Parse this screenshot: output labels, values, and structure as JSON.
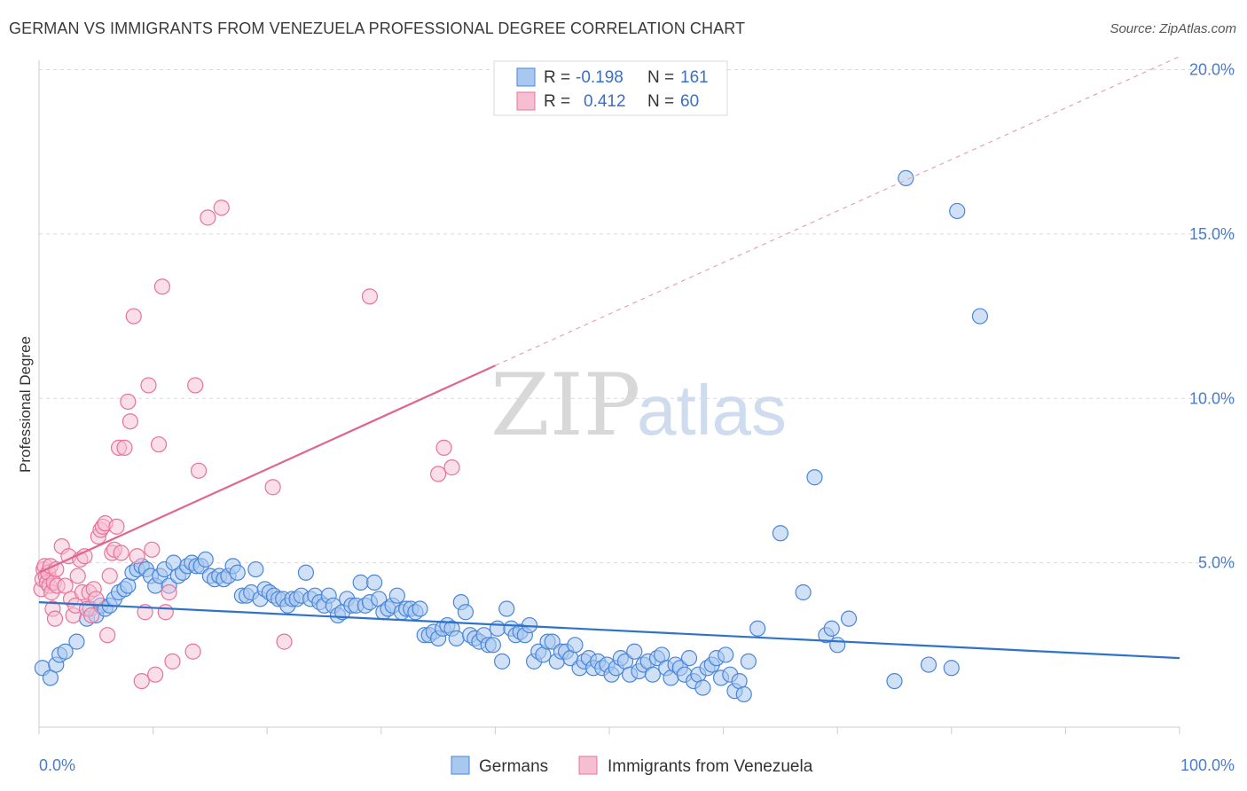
{
  "title": "GERMAN VS IMMIGRANTS FROM VENEZUELA PROFESSIONAL DEGREE CORRELATION CHART",
  "source": "Source: ZipAtlas.com",
  "watermark": {
    "zip": "ZIP",
    "atlas": "atlas"
  },
  "colors": {
    "blue": "#4a86d8",
    "blue_fill": "#a9c8f0",
    "pink": "#e87399",
    "pink_fill": "#f6bfd1",
    "tick_text": "#4a7cc9"
  },
  "legend": {
    "rows": [
      {
        "r_label": "R = ",
        "r_value": "-0.198",
        "n_label": "N = ",
        "n_value": "161"
      },
      {
        "r_label": "R = ",
        "r_value": "0.412",
        "n_label": "N = ",
        "n_value": "60"
      }
    ]
  },
  "bottom_legend": {
    "germans": "Germans",
    "venezuela": "Immigrants from Venezuela"
  },
  "chart_data": {
    "type": "scatter",
    "title": "GERMAN VS IMMIGRANTS FROM VENEZUELA PROFESSIONAL DEGREE CORRELATION CHART",
    "xlabel": "",
    "ylabel": "Professional Degree",
    "xlim": [
      0,
      100
    ],
    "ylim": [
      0,
      20.5
    ],
    "x_tick_labels": [
      "0.0%",
      "100.0%"
    ],
    "y_ticks": [
      5,
      10,
      15,
      20
    ],
    "y_tick_labels": [
      "5.0%",
      "10.0%",
      "15.0%",
      "20.0%"
    ],
    "grid": "horizontal dashed",
    "legend_position": "top-center",
    "series": [
      {
        "name": "Germans",
        "R": -0.198,
        "N": 161,
        "trend": {
          "x": [
            0,
            100
          ],
          "y": [
            3.8,
            2.1
          ],
          "dashed_extension": false
        },
        "points": [
          [
            0.3,
            1.8
          ],
          [
            1.0,
            1.5
          ],
          [
            1.5,
            1.9
          ],
          [
            1.8,
            2.2
          ],
          [
            2.3,
            2.3
          ],
          [
            3.3,
            2.6
          ],
          [
            4.2,
            3.3
          ],
          [
            4.5,
            3.6
          ],
          [
            5.0,
            3.4
          ],
          [
            5.4,
            3.7
          ],
          [
            5.8,
            3.6
          ],
          [
            6.2,
            3.7
          ],
          [
            6.6,
            3.9
          ],
          [
            7.0,
            4.1
          ],
          [
            7.5,
            4.2
          ],
          [
            7.8,
            4.3
          ],
          [
            8.2,
            4.7
          ],
          [
            8.6,
            4.8
          ],
          [
            9.0,
            4.9
          ],
          [
            9.4,
            4.8
          ],
          [
            9.8,
            4.6
          ],
          [
            10.2,
            4.3
          ],
          [
            10.6,
            4.6
          ],
          [
            11.0,
            4.8
          ],
          [
            11.4,
            4.3
          ],
          [
            11.8,
            5.0
          ],
          [
            12.2,
            4.6
          ],
          [
            12.6,
            4.7
          ],
          [
            13.0,
            4.9
          ],
          [
            13.4,
            5.0
          ],
          [
            13.8,
            4.9
          ],
          [
            14.2,
            4.9
          ],
          [
            14.6,
            5.1
          ],
          [
            15.0,
            4.6
          ],
          [
            15.4,
            4.5
          ],
          [
            15.8,
            4.6
          ],
          [
            16.2,
            4.5
          ],
          [
            16.6,
            4.6
          ],
          [
            17.0,
            4.9
          ],
          [
            17.4,
            4.7
          ],
          [
            17.8,
            4.0
          ],
          [
            18.2,
            4.0
          ],
          [
            18.6,
            4.1
          ],
          [
            19.0,
            4.8
          ],
          [
            19.4,
            3.9
          ],
          [
            19.8,
            4.2
          ],
          [
            20.2,
            4.1
          ],
          [
            20.6,
            4.0
          ],
          [
            21.0,
            3.9
          ],
          [
            21.4,
            3.9
          ],
          [
            21.8,
            3.7
          ],
          [
            22.2,
            3.9
          ],
          [
            22.6,
            3.9
          ],
          [
            23.0,
            4.0
          ],
          [
            23.4,
            4.7
          ],
          [
            23.8,
            3.9
          ],
          [
            24.2,
            4.0
          ],
          [
            24.6,
            3.8
          ],
          [
            25.0,
            3.7
          ],
          [
            25.4,
            4.0
          ],
          [
            25.8,
            3.7
          ],
          [
            26.2,
            3.4
          ],
          [
            26.6,
            3.5
          ],
          [
            27.0,
            3.9
          ],
          [
            27.4,
            3.7
          ],
          [
            27.8,
            3.7
          ],
          [
            28.2,
            4.4
          ],
          [
            28.6,
            3.7
          ],
          [
            29.0,
            3.8
          ],
          [
            29.4,
            4.4
          ],
          [
            29.8,
            3.9
          ],
          [
            30.2,
            3.5
          ],
          [
            30.6,
            3.6
          ],
          [
            31.0,
            3.7
          ],
          [
            31.4,
            4.0
          ],
          [
            31.8,
            3.5
          ],
          [
            32.2,
            3.6
          ],
          [
            32.6,
            3.6
          ],
          [
            33.0,
            3.5
          ],
          [
            33.4,
            3.6
          ],
          [
            33.8,
            2.8
          ],
          [
            34.2,
            2.8
          ],
          [
            34.6,
            2.9
          ],
          [
            35.0,
            2.7
          ],
          [
            35.4,
            3.0
          ],
          [
            35.8,
            3.1
          ],
          [
            36.2,
            3.0
          ],
          [
            36.6,
            2.7
          ],
          [
            37.0,
            3.8
          ],
          [
            37.4,
            3.5
          ],
          [
            37.8,
            2.8
          ],
          [
            38.2,
            2.7
          ],
          [
            38.6,
            2.6
          ],
          [
            39.0,
            2.8
          ],
          [
            39.4,
            2.5
          ],
          [
            39.8,
            2.5
          ],
          [
            40.2,
            3.0
          ],
          [
            40.6,
            2.0
          ],
          [
            41.0,
            3.6
          ],
          [
            41.4,
            3.0
          ],
          [
            41.8,
            2.8
          ],
          [
            42.2,
            2.9
          ],
          [
            42.6,
            2.8
          ],
          [
            43.0,
            3.1
          ],
          [
            43.4,
            2.0
          ],
          [
            43.8,
            2.3
          ],
          [
            44.2,
            2.2
          ],
          [
            44.6,
            2.6
          ],
          [
            45.0,
            2.6
          ],
          [
            45.4,
            2.0
          ],
          [
            45.8,
            2.3
          ],
          [
            46.2,
            2.3
          ],
          [
            46.6,
            2.1
          ],
          [
            47.0,
            2.5
          ],
          [
            47.4,
            1.8
          ],
          [
            47.8,
            2.0
          ],
          [
            48.2,
            2.1
          ],
          [
            48.6,
            1.8
          ],
          [
            49.0,
            2.0
          ],
          [
            49.4,
            1.8
          ],
          [
            49.8,
            1.9
          ],
          [
            50.2,
            1.6
          ],
          [
            50.6,
            1.8
          ],
          [
            51.0,
            2.1
          ],
          [
            51.4,
            2.0
          ],
          [
            51.8,
            1.6
          ],
          [
            52.2,
            2.3
          ],
          [
            52.6,
            1.7
          ],
          [
            53.0,
            1.9
          ],
          [
            53.4,
            2.0
          ],
          [
            53.8,
            1.6
          ],
          [
            54.2,
            2.1
          ],
          [
            54.6,
            2.2
          ],
          [
            55.0,
            1.8
          ],
          [
            55.4,
            1.5
          ],
          [
            55.8,
            1.9
          ],
          [
            56.2,
            1.8
          ],
          [
            56.6,
            1.6
          ],
          [
            57.0,
            2.1
          ],
          [
            57.4,
            1.4
          ],
          [
            57.8,
            1.6
          ],
          [
            58.2,
            1.2
          ],
          [
            58.6,
            1.8
          ],
          [
            59.0,
            1.9
          ],
          [
            59.4,
            2.1
          ],
          [
            59.8,
            1.5
          ],
          [
            60.2,
            2.2
          ],
          [
            60.6,
            1.6
          ],
          [
            61.0,
            1.1
          ],
          [
            61.4,
            1.4
          ],
          [
            61.8,
            1.0
          ],
          [
            62.2,
            2.0
          ],
          [
            63.0,
            3.0
          ],
          [
            65.0,
            5.9
          ],
          [
            67.0,
            4.1
          ],
          [
            68.0,
            7.6
          ],
          [
            69.0,
            2.8
          ],
          [
            69.5,
            3.0
          ],
          [
            70.0,
            2.5
          ],
          [
            71.0,
            3.3
          ],
          [
            76.0,
            16.7
          ],
          [
            80.5,
            15.7
          ],
          [
            82.5,
            12.5
          ],
          [
            75.0,
            1.4
          ],
          [
            78.0,
            1.9
          ],
          [
            80.0,
            1.8
          ]
        ]
      },
      {
        "name": "Immigrants from Venezuela",
        "R": 0.412,
        "N": 60,
        "trend": {
          "x": [
            0,
            40
          ],
          "y": [
            4.7,
            11.0
          ],
          "dashed_extension_to": [
            100,
            20.4
          ]
        },
        "points": [
          [
            0.2,
            4.2
          ],
          [
            0.3,
            4.5
          ],
          [
            0.4,
            4.8
          ],
          [
            0.5,
            4.9
          ],
          [
            0.6,
            4.6
          ],
          [
            0.7,
            4.4
          ],
          [
            0.8,
            4.7
          ],
          [
            0.9,
            4.3
          ],
          [
            1.0,
            4.9
          ],
          [
            1.1,
            4.1
          ],
          [
            1.2,
            3.6
          ],
          [
            1.3,
            4.4
          ],
          [
            1.4,
            3.3
          ],
          [
            1.5,
            4.8
          ],
          [
            1.6,
            4.3
          ],
          [
            2.0,
            5.5
          ],
          [
            2.3,
            4.3
          ],
          [
            2.6,
            5.2
          ],
          [
            2.8,
            3.9
          ],
          [
            3.0,
            3.4
          ],
          [
            3.2,
            3.7
          ],
          [
            3.4,
            4.6
          ],
          [
            3.6,
            5.1
          ],
          [
            3.8,
            4.1
          ],
          [
            4.0,
            5.2
          ],
          [
            4.2,
            3.6
          ],
          [
            4.4,
            4.1
          ],
          [
            4.6,
            3.4
          ],
          [
            4.8,
            4.2
          ],
          [
            5.0,
            3.9
          ],
          [
            5.2,
            5.8
          ],
          [
            5.4,
            6.0
          ],
          [
            5.6,
            6.1
          ],
          [
            5.8,
            6.2
          ],
          [
            6.0,
            2.8
          ],
          [
            6.2,
            4.6
          ],
          [
            6.4,
            5.3
          ],
          [
            6.6,
            5.4
          ],
          [
            6.8,
            6.1
          ],
          [
            7.0,
            8.5
          ],
          [
            7.2,
            5.3
          ],
          [
            7.5,
            8.5
          ],
          [
            7.8,
            9.9
          ],
          [
            8.0,
            9.3
          ],
          [
            8.3,
            12.5
          ],
          [
            8.6,
            5.2
          ],
          [
            9.0,
            1.4
          ],
          [
            9.3,
            3.5
          ],
          [
            9.6,
            10.4
          ],
          [
            9.9,
            5.4
          ],
          [
            10.2,
            1.6
          ],
          [
            10.5,
            8.6
          ],
          [
            10.8,
            13.4
          ],
          [
            11.1,
            3.5
          ],
          [
            11.4,
            4.1
          ],
          [
            11.7,
            2.0
          ],
          [
            13.5,
            2.3
          ],
          [
            13.7,
            10.4
          ],
          [
            14.0,
            7.8
          ],
          [
            14.8,
            15.5
          ],
          [
            16.0,
            15.8
          ],
          [
            20.5,
            7.3
          ],
          [
            21.5,
            2.6
          ],
          [
            29.0,
            13.1
          ],
          [
            35.0,
            7.7
          ],
          [
            35.5,
            8.5
          ],
          [
            36.2,
            7.9
          ]
        ]
      }
    ]
  }
}
